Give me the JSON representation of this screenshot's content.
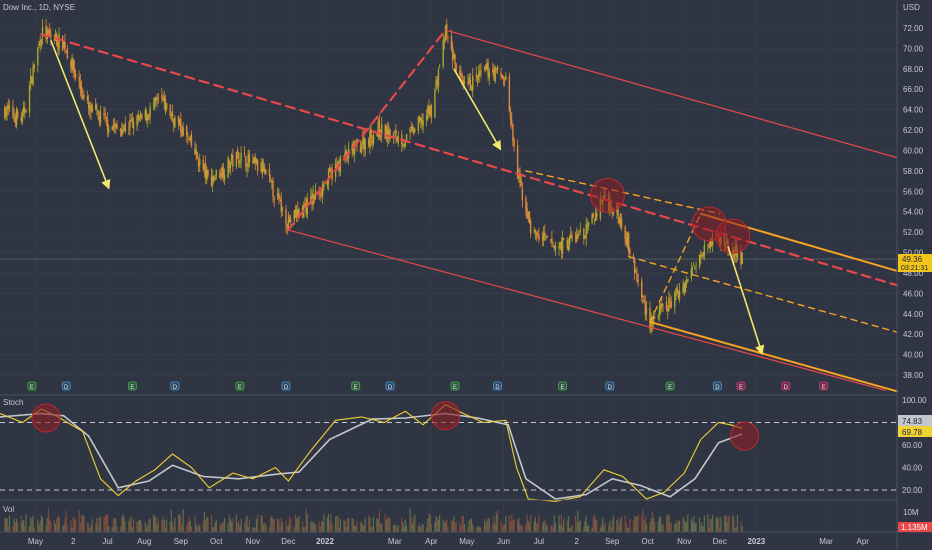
{
  "header": {
    "symbol": "Dow Inc., 1D, NYSE",
    "currency": "USD"
  },
  "indicators": {
    "stoch_label": "Stoch",
    "vol_label": "Vol"
  },
  "price_axis": {
    "ticks": [
      "72.00",
      "70.00",
      "68.00",
      "66.00",
      "64.00",
      "62.00",
      "60.00",
      "58.00",
      "56.00",
      "54.00",
      "52.00",
      "50.00",
      "48.00",
      "46.00",
      "44.00",
      "42.00",
      "40.00",
      "38.00"
    ],
    "tick_values": [
      72,
      70,
      68,
      66,
      64,
      62,
      60,
      58,
      56,
      54,
      52,
      50,
      48,
      46,
      44,
      42,
      40,
      38
    ],
    "last_price": "49.36",
    "countdown": "03:21:31"
  },
  "stoch_axis": {
    "ticks": [
      "100.00",
      "80.00",
      "60.00",
      "40.00",
      "20.00"
    ],
    "tick_values": [
      100,
      80,
      60,
      40,
      20
    ],
    "k_value": "74.83",
    "d_value": "69.78"
  },
  "vol_axis": {
    "tick": "10M",
    "last_volume": "1.135M"
  },
  "time_axis": {
    "labels": [
      "May",
      "2",
      "Jul",
      "Aug",
      "Sep",
      "Oct",
      "Nov",
      "Dec",
      "2022",
      "Mar",
      "Apr",
      "May",
      "Jun",
      "Jul",
      "2",
      "Sep",
      "Oct",
      "Nov",
      "Dec",
      "2023",
      "Mar",
      "Apr"
    ]
  },
  "event_markers": [
    "E",
    "D",
    "E",
    "D",
    "E",
    "D",
    "E",
    "D",
    "E",
    "D",
    "E",
    "D",
    "E",
    "D",
    "E",
    "D",
    "E"
  ],
  "colors": {
    "background": "#2f3542",
    "candle_up": "#a9aa2b",
    "candle_down": "#e0893a",
    "channel_red": "#e8484a",
    "fork_orange": "#f6a323",
    "arrow_yellow": "#f1e76a",
    "stoch_k": "#f1d234",
    "stoch_d": "#c3c6cc",
    "highlight_circle": "#8c1e25",
    "last_price_label": "#f0c419",
    "volume_label": "#e8484a"
  },
  "chart_data": [
    {
      "type": "candlestick",
      "symbol": "Dow Inc.",
      "interval": "1D",
      "exchange": "NYSE",
      "currency": "USD",
      "ylim": [
        37,
        73
      ],
      "last_price": 49.36,
      "x_range": [
        "2021-04-01",
        "2023-04-30"
      ],
      "approx_close_path": [
        {
          "date": "2021-04-05",
          "value": 64.0
        },
        {
          "date": "2021-04-20",
          "value": 63.0
        },
        {
          "date": "2021-05-06",
          "value": 71.5
        },
        {
          "date": "2021-05-25",
          "value": 70.5
        },
        {
          "date": "2021-06-15",
          "value": 64.0
        },
        {
          "date": "2021-07-10",
          "value": 62.0
        },
        {
          "date": "2021-07-30",
          "value": 63.0
        },
        {
          "date": "2021-08-15",
          "value": 65.0
        },
        {
          "date": "2021-09-05",
          "value": 61.5
        },
        {
          "date": "2021-09-25",
          "value": 57.0
        },
        {
          "date": "2021-10-20",
          "value": 59.5
        },
        {
          "date": "2021-11-10",
          "value": 58.0
        },
        {
          "date": "2021-12-01",
          "value": 53.0
        },
        {
          "date": "2021-12-20",
          "value": 55.0
        },
        {
          "date": "2022-01-15",
          "value": 59.0
        },
        {
          "date": "2022-02-15",
          "value": 62.0
        },
        {
          "date": "2022-03-10",
          "value": 61.0
        },
        {
          "date": "2022-04-01",
          "value": 64.0
        },
        {
          "date": "2022-04-13",
          "value": 71.5
        },
        {
          "date": "2022-04-28",
          "value": 66.0
        },
        {
          "date": "2022-05-20",
          "value": 68.0
        },
        {
          "date": "2022-06-03",
          "value": 67.0
        },
        {
          "date": "2022-06-12",
          "value": 58.0
        },
        {
          "date": "2022-06-25",
          "value": 52.0
        },
        {
          "date": "2022-07-15",
          "value": 50.5
        },
        {
          "date": "2022-08-10",
          "value": 52.0
        },
        {
          "date": "2022-08-25",
          "value": 55.5
        },
        {
          "date": "2022-09-10",
          "value": 53.0
        },
        {
          "date": "2022-09-25",
          "value": 46.0
        },
        {
          "date": "2022-10-03",
          "value": 43.2
        },
        {
          "date": "2022-10-20",
          "value": 45.0
        },
        {
          "date": "2022-11-05",
          "value": 47.5
        },
        {
          "date": "2022-11-18",
          "value": 51.0
        },
        {
          "date": "2022-12-02",
          "value": 51.5
        },
        {
          "date": "2022-12-12",
          "value": 50.0
        },
        {
          "date": "2022-12-20",
          "value": 49.36
        }
      ],
      "drawings": {
        "channel_lines": [
          {
            "name": "upper-red-channel",
            "from": {
              "date": "2022-04-13",
              "value": 71.8
            },
            "to": {
              "date": "2023-04-30",
              "value": 59.3
            }
          },
          {
            "name": "lower-red-channel",
            "from": {
              "date": "2021-12-01",
              "value": 52.2
            },
            "to": {
              "date": "2023-04-20",
              "value": 36.5
            }
          },
          {
            "name": "red-dashed-midline",
            "from": {
              "date": "2021-05-06",
              "value": 71.4
            },
            "to": {
              "date": "2023-04-30",
              "value": 46.8
            }
          },
          {
            "name": "red-dashed-rise",
            "from": {
              "date": "2021-12-01",
              "value": 52.2
            },
            "to": {
              "date": "2022-04-13",
              "value": 71.8
            }
          }
        ],
        "pitchfork": [
          {
            "name": "orange-upper",
            "from": {
              "date": "2022-11-15",
              "value": 53.8
            },
            "to": {
              "date": "2023-04-30",
              "value": 48.2
            }
          },
          {
            "name": "orange-lower",
            "from": {
              "date": "2022-10-03",
              "value": 43.2
            },
            "to": {
              "date": "2023-04-30",
              "value": 36.4
            }
          },
          {
            "name": "orange-dashed-top",
            "from": {
              "date": "2022-06-20",
              "value": 58.0
            },
            "to": {
              "date": "2022-12-01",
              "value": 53.8
            }
          },
          {
            "name": "orange-dashed-mid",
            "from": {
              "date": "2022-09-15",
              "value": 49.6
            },
            "to": {
              "date": "2023-04-30",
              "value": 42.2
            }
          },
          {
            "name": "orange-dashed-handle",
            "from": {
              "date": "2022-10-03",
              "value": 43.2
            },
            "to": {
              "date": "2022-11-15",
              "value": 53.8
            }
          }
        ],
        "arrows": [
          {
            "from": {
              "date": "2021-05-14",
              "value": 70.8
            },
            "to": {
              "date": "2021-07-01",
              "value": 56.6
            }
          },
          {
            "from": {
              "date": "2022-04-20",
              "value": 68.0
            },
            "to": {
              "date": "2022-05-28",
              "value": 60.4
            }
          },
          {
            "from": {
              "date": "2022-12-08",
              "value": 50.6
            },
            "to": {
              "date": "2023-01-05",
              "value": 40.4
            }
          }
        ],
        "highlight_circles": [
          {
            "date": "2022-08-28",
            "value": 55.6
          },
          {
            "date": "2022-11-22",
            "value": 52.8
          },
          {
            "date": "2022-12-12",
            "value": 51.6
          }
        ]
      }
    },
    {
      "type": "line",
      "name": "Stoch",
      "ylim": [
        0,
        100
      ],
      "reference_lines": [
        80,
        20
      ],
      "latest": {
        "k": 74.83,
        "d": 69.78
      },
      "series": [
        {
          "name": "%K",
          "values": [
            {
              "date": "2021-04-01",
              "value": 88
            },
            {
              "date": "2021-04-20",
              "value": 80
            },
            {
              "date": "2021-05-06",
              "value": 92
            },
            {
              "date": "2021-05-20",
              "value": 85
            },
            {
              "date": "2021-06-10",
              "value": 72
            },
            {
              "date": "2021-06-25",
              "value": 30
            },
            {
              "date": "2021-07-10",
              "value": 15
            },
            {
              "date": "2021-07-25",
              "value": 28
            },
            {
              "date": "2021-08-10",
              "value": 38
            },
            {
              "date": "2021-08-25",
              "value": 52
            },
            {
              "date": "2021-09-10",
              "value": 40
            },
            {
              "date": "2021-09-25",
              "value": 22
            },
            {
              "date": "2021-10-15",
              "value": 35
            },
            {
              "date": "2021-11-01",
              "value": 30
            },
            {
              "date": "2021-11-20",
              "value": 40
            },
            {
              "date": "2021-12-01",
              "value": 28
            },
            {
              "date": "2021-12-20",
              "value": 55
            },
            {
              "date": "2022-01-10",
              "value": 82
            },
            {
              "date": "2022-02-01",
              "value": 85
            },
            {
              "date": "2022-02-20",
              "value": 80
            },
            {
              "date": "2022-03-10",
              "value": 90
            },
            {
              "date": "2022-03-25",
              "value": 78
            },
            {
              "date": "2022-04-13",
              "value": 96
            },
            {
              "date": "2022-04-28",
              "value": 88
            },
            {
              "date": "2022-05-15",
              "value": 80
            },
            {
              "date": "2022-06-03",
              "value": 82
            },
            {
              "date": "2022-06-12",
              "value": 40
            },
            {
              "date": "2022-06-22",
              "value": 12
            },
            {
              "date": "2022-07-15",
              "value": 10
            },
            {
              "date": "2022-08-05",
              "value": 14
            },
            {
              "date": "2022-08-25",
              "value": 38
            },
            {
              "date": "2022-09-10",
              "value": 32
            },
            {
              "date": "2022-09-30",
              "value": 12
            },
            {
              "date": "2022-10-15",
              "value": 18
            },
            {
              "date": "2022-11-01",
              "value": 35
            },
            {
              "date": "2022-11-15",
              "value": 65
            },
            {
              "date": "2022-11-30",
              "value": 80
            },
            {
              "date": "2022-12-10",
              "value": 78
            },
            {
              "date": "2022-12-20",
              "value": 74.83
            }
          ]
        },
        {
          "name": "%D",
          "values": [
            {
              "date": "2021-04-01",
              "value": 85
            },
            {
              "date": "2021-05-06",
              "value": 88
            },
            {
              "date": "2021-05-25",
              "value": 86
            },
            {
              "date": "2021-06-15",
              "value": 68
            },
            {
              "date": "2021-07-10",
              "value": 22
            },
            {
              "date": "2021-08-05",
              "value": 28
            },
            {
              "date": "2021-08-25",
              "value": 42
            },
            {
              "date": "2021-09-20",
              "value": 32
            },
            {
              "date": "2021-10-20",
              "value": 30
            },
            {
              "date": "2021-11-20",
              "value": 34
            },
            {
              "date": "2021-12-10",
              "value": 36
            },
            {
              "date": "2022-01-05",
              "value": 65
            },
            {
              "date": "2022-02-10",
              "value": 83
            },
            {
              "date": "2022-03-10",
              "value": 84
            },
            {
              "date": "2022-04-13",
              "value": 88
            },
            {
              "date": "2022-05-10",
              "value": 84
            },
            {
              "date": "2022-06-05",
              "value": 78
            },
            {
              "date": "2022-06-20",
              "value": 30
            },
            {
              "date": "2022-07-15",
              "value": 12
            },
            {
              "date": "2022-08-10",
              "value": 16
            },
            {
              "date": "2022-09-01",
              "value": 30
            },
            {
              "date": "2022-09-25",
              "value": 24
            },
            {
              "date": "2022-10-20",
              "value": 14
            },
            {
              "date": "2022-11-10",
              "value": 30
            },
            {
              "date": "2022-11-30",
              "value": 62
            },
            {
              "date": "2022-12-20",
              "value": 69.78
            }
          ]
        }
      ],
      "highlight_circles": [
        {
          "date": "2021-05-10",
          "value": 84
        },
        {
          "date": "2022-04-13",
          "value": 86
        },
        {
          "date": "2022-12-22",
          "value": 68
        }
      ]
    },
    {
      "type": "bar",
      "name": "Vol",
      "ylim": [
        0,
        14000000
      ],
      "last_volume": 1135000,
      "note": "daily volume bars, colored by candle direction"
    }
  ]
}
